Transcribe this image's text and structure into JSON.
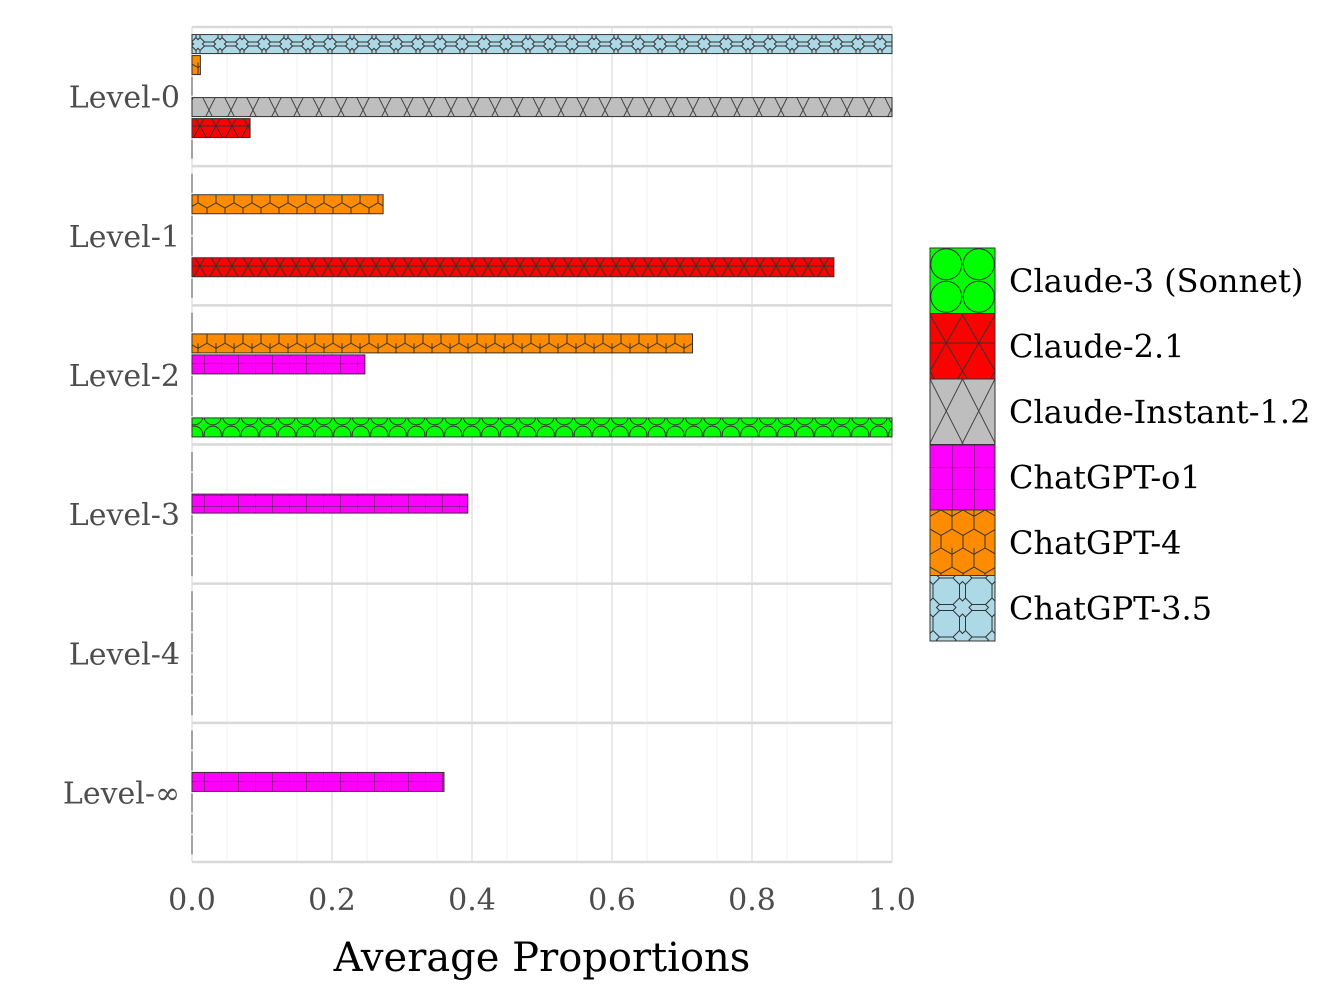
{
  "chart_data": {
    "type": "bar",
    "orientation": "horizontal",
    "xlabel": "Average Proportions",
    "ylabel": "",
    "xlim": [
      0,
      1.0
    ],
    "x_ticks": [
      "0.0",
      "0.2",
      "0.4",
      "0.6",
      "0.8",
      "1.0"
    ],
    "grid": true,
    "legend_position": "right",
    "categories": [
      "Level-0",
      "Level-1",
      "Level-2",
      "Level-3",
      "Level-4",
      "Level-∞"
    ],
    "series": [
      {
        "name": "ChatGPT-3.5",
        "color": "#add8e6",
        "pattern": "octagon",
        "values": [
          1.0,
          0,
          0,
          0,
          0,
          0
        ]
      },
      {
        "name": "ChatGPT-4",
        "color": "#ff8c00",
        "pattern": "hexagon",
        "values": [
          0.012,
          0.273,
          0.715,
          0,
          0,
          0
        ]
      },
      {
        "name": "ChatGPT-o1",
        "color": "#ff00ff",
        "pattern": "grid",
        "values": [
          0,
          0,
          0.247,
          0.394,
          0,
          0.36
        ]
      },
      {
        "name": "Claude-Instant-1.2",
        "color": "#bebebe",
        "pattern": "crosshatch",
        "values": [
          1.0,
          0,
          0,
          0,
          0,
          0
        ]
      },
      {
        "name": "Claude-2.1",
        "color": "#ff0000",
        "pattern": "triangle",
        "values": [
          0.083,
          0.917,
          0,
          0,
          0,
          0
        ]
      },
      {
        "name": "Claude-3 (Sonnet)",
        "color": "#00ff00",
        "pattern": "circle",
        "values": [
          0,
          0,
          1.0,
          0,
          0,
          0
        ]
      }
    ],
    "legend_order": [
      "Claude-3 (Sonnet)",
      "Claude-2.1",
      "Claude-Instant-1.2",
      "ChatGPT-o1",
      "ChatGPT-4",
      "ChatGPT-3.5"
    ]
  }
}
